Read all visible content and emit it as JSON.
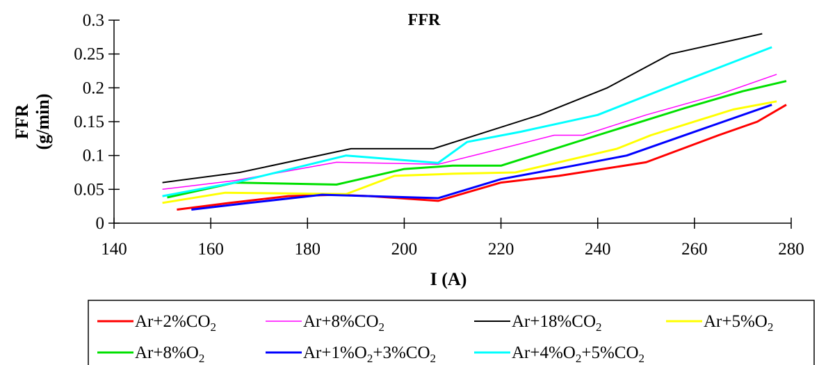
{
  "chart_data": {
    "type": "line",
    "title": "FFR",
    "xlabel": "I (A)",
    "ylabel_line1": "FFR",
    "ylabel_line2": "(g/min)",
    "xlim": [
      140,
      280
    ],
    "ylim": [
      0,
      0.3
    ],
    "xticks": [
      "140",
      "160",
      "180",
      "200",
      "220",
      "240",
      "260",
      "280"
    ],
    "yticks": [
      "0",
      "0.05",
      "0.1",
      "0.15",
      "0.2",
      "0.25",
      "0.3"
    ],
    "grid": false,
    "legend_position": "bottom",
    "series": [
      {
        "name": "Ar+2%CO2",
        "label_parts": [
          [
            "Ar+2%CO",
            ""
          ],
          [
            "2",
            "sub"
          ]
        ],
        "color": "#ff0000",
        "width": 3,
        "x": [
          153,
          164,
          176,
          186,
          193,
          207,
          220,
          232,
          250,
          265,
          273,
          279
        ],
        "y": [
          0.02,
          0.03,
          0.04,
          0.042,
          0.04,
          0.033,
          0.06,
          0.07,
          0.09,
          0.13,
          0.15,
          0.175
        ]
      },
      {
        "name": "Ar+8%CO2",
        "label_parts": [
          [
            "Ar+8%CO",
            ""
          ],
          [
            "2",
            "sub"
          ]
        ],
        "color": "#ff00ff",
        "width": 1.5,
        "x": [
          150,
          165,
          186,
          207,
          220,
          231,
          237,
          250,
          265,
          277
        ],
        "y": [
          0.05,
          0.063,
          0.09,
          0.087,
          0.11,
          0.13,
          0.13,
          0.16,
          0.19,
          0.22
        ]
      },
      {
        "name": "Ar+18%CO2",
        "label_parts": [
          [
            "Ar+18%CO",
            ""
          ],
          [
            "2",
            "sub"
          ]
        ],
        "color": "#000000",
        "width": 2,
        "x": [
          150,
          166,
          189,
          206,
          228,
          242,
          255,
          274
        ],
        "y": [
          0.06,
          0.075,
          0.11,
          0.11,
          0.16,
          0.2,
          0.25,
          0.28
        ]
      },
      {
        "name": "Ar+5%O2",
        "label_parts": [
          [
            "Ar+5%O",
            ""
          ],
          [
            "2",
            "sub"
          ]
        ],
        "color": "#ffff00",
        "width": 3,
        "x": [
          150,
          163,
          188,
          198,
          210,
          223,
          244,
          251,
          268,
          277
        ],
        "y": [
          0.03,
          0.045,
          0.043,
          0.07,
          0.073,
          0.075,
          0.11,
          0.13,
          0.168,
          0.18
        ]
      },
      {
        "name": "Ar+8%O2",
        "label_parts": [
          [
            "Ar+8%O",
            ""
          ],
          [
            "2",
            "sub"
          ]
        ],
        "color": "#00e000",
        "width": 3,
        "x": [
          151,
          165,
          186,
          200,
          210,
          220,
          240,
          258,
          270,
          279
        ],
        "y": [
          0.038,
          0.06,
          0.057,
          0.08,
          0.085,
          0.085,
          0.13,
          0.17,
          0.195,
          0.21
        ]
      },
      {
        "name": "Ar+1%O2+3%CO2",
        "label_parts": [
          [
            "Ar+1%O",
            ""
          ],
          [
            "2",
            "sub"
          ],
          [
            "+3%CO",
            ""
          ],
          [
            "2",
            "sub"
          ]
        ],
        "color": "#0000ff",
        "width": 3,
        "x": [
          156,
          168,
          183,
          193,
          207,
          220,
          235,
          246,
          262,
          276
        ],
        "y": [
          0.02,
          0.03,
          0.042,
          0.04,
          0.037,
          0.065,
          0.085,
          0.1,
          0.14,
          0.175
        ]
      },
      {
        "name": "Ar+4%O2+5%CO2",
        "label_parts": [
          [
            "Ar+4%O",
            ""
          ],
          [
            "2",
            "sub"
          ],
          [
            "+5%CO",
            ""
          ],
          [
            "2",
            "sub"
          ]
        ],
        "color": "#00ffff",
        "width": 3,
        "x": [
          150,
          165,
          188,
          207,
          213,
          224,
          240,
          256,
          276
        ],
        "y": [
          0.04,
          0.06,
          0.1,
          0.089,
          0.12,
          0.135,
          0.16,
          0.205,
          0.26
        ]
      }
    ]
  }
}
